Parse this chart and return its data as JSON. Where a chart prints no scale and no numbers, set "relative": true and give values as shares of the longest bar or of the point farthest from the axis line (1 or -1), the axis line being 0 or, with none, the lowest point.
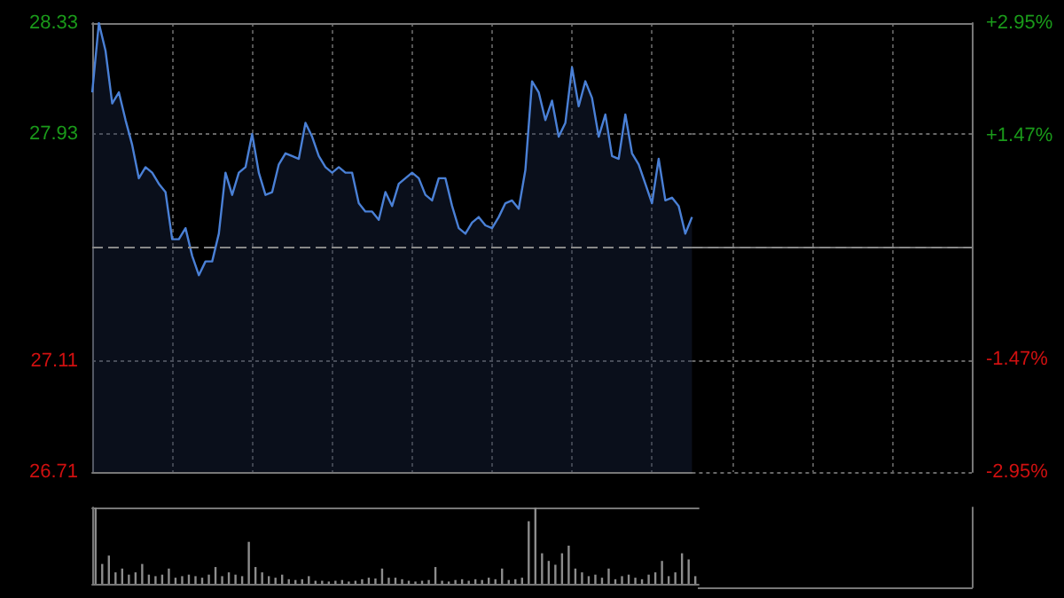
{
  "chart_data": [
    {
      "type": "area",
      "categories": [
        null,
        null,
        null,
        null,
        null,
        null,
        null,
        null,
        null,
        null,
        null,
        null,
        null,
        null,
        null,
        null,
        null,
        null,
        null,
        null,
        null,
        null,
        null,
        null,
        null,
        null,
        null,
        null,
        null,
        null,
        null,
        null,
        null,
        null,
        null,
        null,
        null,
        null,
        null,
        null,
        null,
        null,
        null,
        null,
        null,
        null,
        null,
        null,
        null,
        null,
        null,
        null,
        null,
        null,
        null,
        null,
        null,
        null,
        null,
        null,
        null,
        null,
        null,
        null,
        null,
        null,
        null,
        null,
        null,
        null,
        null,
        null,
        null,
        null,
        null,
        null,
        null,
        null,
        null,
        null,
        null,
        null,
        null,
        null,
        null,
        null,
        null,
        null,
        null,
        null,
        null
      ],
      "series": [
        {
          "color": "#4a80d6",
          "values": [
            28.08,
            28.33,
            28.23,
            28.04,
            28.08,
            27.98,
            27.89,
            27.77,
            27.81,
            27.79,
            27.75,
            27.72,
            27.55,
            27.55,
            27.59,
            27.49,
            27.42,
            27.47,
            27.47,
            27.57,
            27.79,
            27.71,
            27.79,
            27.81,
            27.93,
            27.79,
            27.71,
            27.72,
            27.82,
            27.86,
            27.85,
            27.84,
            27.97,
            27.92,
            27.85,
            27.81,
            27.79,
            27.81,
            27.79,
            27.79,
            27.68,
            27.65,
            27.65,
            27.62,
            27.72,
            27.67,
            27.75,
            27.77,
            27.79,
            27.77,
            27.71,
            27.69,
            27.77,
            27.77,
            27.67,
            27.59,
            27.57,
            27.61,
            27.63,
            27.6,
            27.59,
            27.63,
            27.68,
            27.69,
            27.66,
            27.8,
            28.12,
            28.08,
            27.98,
            28.05,
            27.92,
            27.97,
            28.17,
            28.03,
            28.12,
            28.06,
            27.92,
            28.0,
            27.85,
            27.84,
            28.0,
            27.86,
            27.82,
            27.75,
            27.68,
            27.84,
            27.69,
            27.7,
            27.67,
            27.57,
            27.63
          ]
        }
      ],
      "ylim": [
        26.71,
        28.33
      ],
      "yticks": [
        26.71,
        27.11,
        27.93,
        28.33
      ],
      "y2lim": [
        -2.95,
        2.95
      ],
      "y2ticks": [
        {
          "value": -2.95,
          "label": "-2.95%"
        },
        {
          "value": -1.47,
          "label": "-1.47%"
        },
        {
          "value": 1.47,
          "label": "+1.47%"
        },
        {
          "value": 2.95,
          "label": "+2.95%"
        }
      ],
      "ref_lines": [
        {
          "axis": "y",
          "value": 27.52,
          "color": "#888888",
          "line_style": "dashed"
        }
      ],
      "grid": true,
      "tick_labels": "y"
    },
    {
      "type": "bar",
      "relative": true,
      "categories": [
        null,
        null,
        null,
        null,
        null,
        null,
        null,
        null,
        null,
        null,
        null,
        null,
        null,
        null,
        null,
        null,
        null,
        null,
        null,
        null,
        null,
        null,
        null,
        null,
        null,
        null,
        null,
        null,
        null,
        null,
        null,
        null,
        null,
        null,
        null,
        null,
        null,
        null,
        null,
        null,
        null,
        null,
        null,
        null,
        null,
        null,
        null,
        null,
        null,
        null,
        null,
        null,
        null,
        null,
        null,
        null,
        null,
        null,
        null,
        null,
        null,
        null,
        null,
        null,
        null,
        null,
        null,
        null,
        null,
        null,
        null,
        null,
        null,
        null,
        null,
        null,
        null,
        null,
        null,
        null,
        null,
        null,
        null,
        null,
        null,
        null,
        null,
        null,
        null,
        null,
        null
      ],
      "series": [
        {
          "color": "#8c8c8c",
          "values": [
            1.0,
            0.26,
            0.37,
            0.15,
            0.2,
            0.12,
            0.15,
            0.26,
            0.12,
            0.1,
            0.12,
            0.2,
            0.08,
            0.1,
            0.12,
            0.1,
            0.08,
            0.12,
            0.22,
            0.1,
            0.15,
            0.12,
            0.1,
            0.55,
            0.22,
            0.15,
            0.1,
            0.08,
            0.12,
            0.06,
            0.05,
            0.06,
            0.1,
            0.04,
            0.04,
            0.03,
            0.04,
            0.05,
            0.03,
            0.04,
            0.06,
            0.08,
            0.07,
            0.2,
            0.08,
            0.08,
            0.06,
            0.04,
            0.03,
            0.04,
            0.05,
            0.22,
            0.04,
            0.03,
            0.05,
            0.06,
            0.04,
            0.06,
            0.05,
            0.08,
            0.06,
            0.2,
            0.05,
            0.06,
            0.08,
            0.82,
            1.0,
            0.4,
            0.3,
            0.25,
            0.4,
            0.5,
            0.2,
            0.15,
            0.1,
            0.12,
            0.08,
            0.2,
            0.06,
            0.1,
            0.12,
            0.08,
            0.06,
            0.12,
            0.15,
            0.3,
            0.1,
            0.15,
            0.4,
            0.32,
            0.1
          ]
        }
      ]
    }
  ]
}
